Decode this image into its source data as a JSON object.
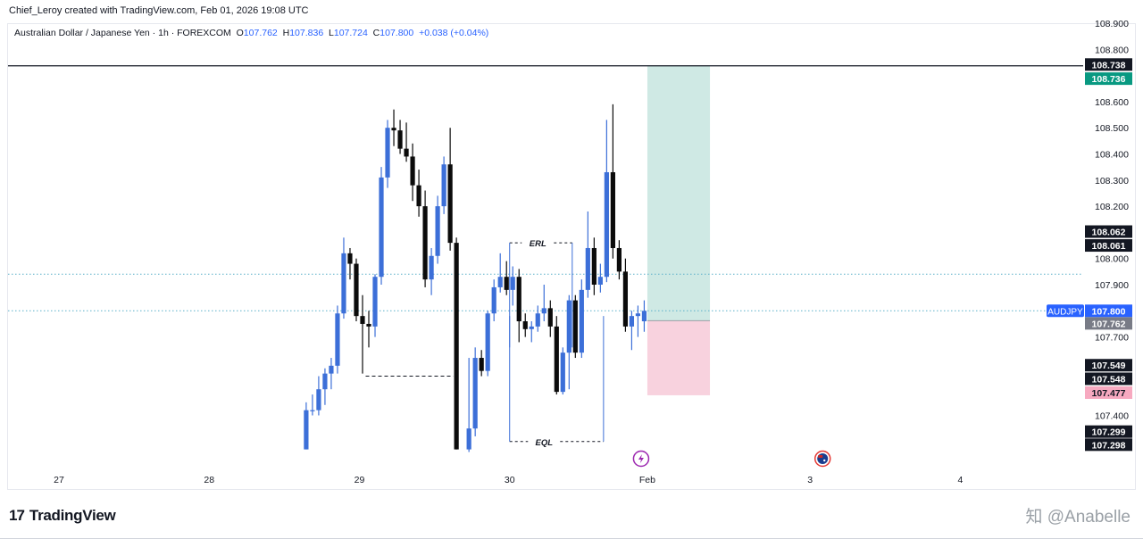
{
  "header": {
    "created_text": "Chief_Leroy created with TradingView.com, Feb 01, 2026 19:08 UTC"
  },
  "legend": {
    "symbol": "Australian Dollar / Japanese Yen · 1h · FOREXCOM",
    "open_key": "O",
    "open": "107.762",
    "high_key": "H",
    "high": "107.836",
    "low_key": "L",
    "low": "107.724",
    "close_key": "C",
    "close": "107.800",
    "change": "+0.038 (+0.04%)"
  },
  "colors": {
    "up": "#3c6fd8",
    "down": "#0b0b0b",
    "profit_zone": "#cfe9e4",
    "loss_zone": "#f8d2de",
    "price_badge": "#2962ff",
    "target_badge": "#089981",
    "stop_badge": "#f7a9c0",
    "entry_badge": "#787b86",
    "grid_dot": "#5ab0c9"
  },
  "chart_data": {
    "type": "candlestick",
    "symbol": "AUDJPY",
    "timeframe": "1h",
    "ylim": [
      107.28,
      108.92
    ],
    "y_ticks": [
      "108.900",
      "108.800",
      "108.700",
      "108.600",
      "108.500",
      "108.400",
      "108.300",
      "108.200",
      "108.100",
      "108.000",
      "107.900",
      "107.800",
      "107.700",
      "107.600",
      "107.500",
      "107.400",
      "107.300"
    ],
    "x_ticks": [
      {
        "label": "27",
        "t": 0
      },
      {
        "label": "28",
        "t": 24
      },
      {
        "label": "29",
        "t": 48
      },
      {
        "label": "30",
        "t": 72
      },
      {
        "label": "Feb",
        "t": 94
      },
      {
        "label": "3",
        "t": 120
      },
      {
        "label": "4",
        "t": 144
      }
    ],
    "candles": [
      {
        "t": 39.5,
        "o": 107.27,
        "h": 107.45,
        "l": 107.27,
        "c": 107.42
      },
      {
        "t": 40.5,
        "o": 107.42,
        "h": 107.48,
        "l": 107.4,
        "c": 107.42
      },
      {
        "t": 41.5,
        "o": 107.42,
        "h": 107.55,
        "l": 107.4,
        "c": 107.5
      },
      {
        "t": 42.5,
        "o": 107.5,
        "h": 107.58,
        "l": 107.44,
        "c": 107.56
      },
      {
        "t": 43.5,
        "o": 107.56,
        "h": 107.62,
        "l": 107.5,
        "c": 107.59
      },
      {
        "t": 44.5,
        "o": 107.59,
        "h": 107.82,
        "l": 107.56,
        "c": 107.79
      },
      {
        "t": 45.5,
        "o": 107.79,
        "h": 108.08,
        "l": 107.77,
        "c": 108.02
      },
      {
        "t": 46.5,
        "o": 108.02,
        "h": 108.04,
        "l": 107.92,
        "c": 107.98
      },
      {
        "t": 47.5,
        "o": 107.98,
        "h": 108.0,
        "l": 107.76,
        "c": 107.78
      },
      {
        "t": 48.5,
        "o": 107.78,
        "h": 107.86,
        "l": 107.56,
        "c": 107.75
      },
      {
        "t": 49.5,
        "o": 107.75,
        "h": 107.8,
        "l": 107.66,
        "c": 107.74
      },
      {
        "t": 50.5,
        "o": 107.74,
        "h": 107.94,
        "l": 107.7,
        "c": 107.93
      },
      {
        "t": 51.5,
        "o": 107.93,
        "h": 108.35,
        "l": 107.9,
        "c": 108.31
      },
      {
        "t": 52.5,
        "o": 108.31,
        "h": 108.53,
        "l": 108.27,
        "c": 108.5
      },
      {
        "t": 53.5,
        "o": 108.5,
        "h": 108.57,
        "l": 108.43,
        "c": 108.49
      },
      {
        "t": 54.5,
        "o": 108.49,
        "h": 108.53,
        "l": 108.4,
        "c": 108.42
      },
      {
        "t": 55.5,
        "o": 108.42,
        "h": 108.52,
        "l": 108.37,
        "c": 108.39
      },
      {
        "t": 56.5,
        "o": 108.39,
        "h": 108.44,
        "l": 108.22,
        "c": 108.28
      },
      {
        "t": 57.5,
        "o": 108.28,
        "h": 108.34,
        "l": 108.16,
        "c": 108.2
      },
      {
        "t": 58.5,
        "o": 108.2,
        "h": 108.26,
        "l": 107.89,
        "c": 107.92
      },
      {
        "t": 59.5,
        "o": 107.92,
        "h": 108.04,
        "l": 107.86,
        "c": 108.01
      },
      {
        "t": 60.5,
        "o": 108.01,
        "h": 108.24,
        "l": 107.98,
        "c": 108.2
      },
      {
        "t": 61.5,
        "o": 108.2,
        "h": 108.39,
        "l": 108.17,
        "c": 108.36
      },
      {
        "t": 62.5,
        "o": 108.36,
        "h": 108.5,
        "l": 108.03,
        "c": 108.06
      },
      {
        "t": 63.5,
        "o": 108.06,
        "h": 108.08,
        "l": 107.27,
        "c": 107.27
      },
      {
        "t": 65.5,
        "o": 107.27,
        "h": 107.62,
        "l": 107.26,
        "c": 107.35
      },
      {
        "t": 66.5,
        "o": 107.35,
        "h": 107.66,
        "l": 107.32,
        "c": 107.62
      },
      {
        "t": 67.5,
        "o": 107.62,
        "h": 107.65,
        "l": 107.55,
        "c": 107.57
      },
      {
        "t": 68.5,
        "o": 107.57,
        "h": 107.8,
        "l": 107.55,
        "c": 107.79
      },
      {
        "t": 69.5,
        "o": 107.79,
        "h": 107.92,
        "l": 107.76,
        "c": 107.89
      },
      {
        "t": 70.5,
        "o": 107.89,
        "h": 108.02,
        "l": 107.87,
        "c": 107.93
      },
      {
        "t": 71.5,
        "o": 107.93,
        "h": 107.99,
        "l": 107.86,
        "c": 107.88
      },
      {
        "t": 72.5,
        "o": 107.88,
        "h": 107.97,
        "l": 107.82,
        "c": 107.93
      },
      {
        "t": 73.5,
        "o": 107.93,
        "h": 107.96,
        "l": 107.68,
        "c": 107.76
      },
      {
        "t": 74.5,
        "o": 107.76,
        "h": 107.79,
        "l": 107.7,
        "c": 107.73
      },
      {
        "t": 75.5,
        "o": 107.73,
        "h": 107.76,
        "l": 107.68,
        "c": 107.74
      },
      {
        "t": 76.5,
        "o": 107.74,
        "h": 107.82,
        "l": 107.72,
        "c": 107.79
      },
      {
        "t": 77.5,
        "o": 107.79,
        "h": 107.9,
        "l": 107.76,
        "c": 107.81
      },
      {
        "t": 78.5,
        "o": 107.81,
        "h": 107.84,
        "l": 107.7,
        "c": 107.74
      },
      {
        "t": 79.5,
        "o": 107.74,
        "h": 107.78,
        "l": 107.48,
        "c": 107.49
      },
      {
        "t": 80.5,
        "o": 107.49,
        "h": 107.66,
        "l": 107.48,
        "c": 107.64
      },
      {
        "t": 81.5,
        "o": 107.64,
        "h": 107.86,
        "l": 107.5,
        "c": 107.84
      },
      {
        "t": 82.5,
        "o": 107.84,
        "h": 107.86,
        "l": 107.62,
        "c": 107.64
      },
      {
        "t": 83.5,
        "o": 107.64,
        "h": 107.92,
        "l": 107.62,
        "c": 107.88
      },
      {
        "t": 84.5,
        "o": 107.88,
        "h": 108.18,
        "l": 107.85,
        "c": 108.04
      },
      {
        "t": 85.5,
        "o": 108.04,
        "h": 108.08,
        "l": 107.86,
        "c": 107.9
      },
      {
        "t": 86.5,
        "o": 107.9,
        "h": 107.98,
        "l": 107.87,
        "c": 107.93
      },
      {
        "t": 87.5,
        "o": 107.93,
        "h": 108.53,
        "l": 107.91,
        "c": 108.33
      },
      {
        "t": 88.5,
        "o": 108.33,
        "h": 108.59,
        "l": 108.0,
        "c": 108.04
      },
      {
        "t": 89.5,
        "o": 108.04,
        "h": 108.07,
        "l": 107.92,
        "c": 107.95
      },
      {
        "t": 90.5,
        "o": 107.95,
        "h": 108.0,
        "l": 107.72,
        "c": 107.74
      },
      {
        "t": 91.5,
        "o": 107.74,
        "h": 107.8,
        "l": 107.65,
        "c": 107.78
      },
      {
        "t": 92.5,
        "o": 107.78,
        "h": 107.82,
        "l": 107.7,
        "c": 107.79
      },
      {
        "t": 93.5,
        "o": 107.76,
        "h": 107.84,
        "l": 107.72,
        "c": 107.8
      }
    ],
    "horizontal_lines": [
      {
        "price": 108.737,
        "style": "solid",
        "color": "#131722"
      },
      {
        "price": 107.94,
        "style": "dotted",
        "color": "#5ab0c9"
      },
      {
        "price": 107.8,
        "style": "dotted",
        "color": "#5ab0c9"
      }
    ],
    "annotations": [
      {
        "label": "ERL",
        "t_from": 72,
        "t_to": 82,
        "price": 108.06,
        "bracket_up": 107.66,
        "label_t": 76.5
      },
      {
        "label": "EQL",
        "t_from": 72,
        "t_to": 87,
        "price": 107.3,
        "bracket_up": 107.78,
        "label_t": 77.5
      }
    ],
    "liquidity_line": {
      "t_from": 49,
      "t_to": 63,
      "price": 107.55
    },
    "position": {
      "type": "long",
      "t_from": 94,
      "t_to": 104,
      "entry": 107.762,
      "target": 108.738,
      "stop": 107.477
    },
    "price_badges": [
      {
        "text": "108.738",
        "price": 108.742,
        "bg": "#131722",
        "fg": "#ffffff"
      },
      {
        "text": "108.736",
        "price": 108.688,
        "bg": "#089981",
        "fg": "#ffffff"
      },
      {
        "text": "108.062",
        "price": 108.103,
        "bg": "#131722",
        "fg": "#ffffff"
      },
      {
        "text": "108.061",
        "price": 108.05,
        "bg": "#131722",
        "fg": "#ffffff"
      },
      {
        "text": "107.800",
        "price": 107.8,
        "bg": "#2962ff",
        "fg": "#ffffff"
      },
      {
        "text": "107.762",
        "price": 107.752,
        "bg": "#787b86",
        "fg": "#ffffff"
      },
      {
        "text": "107.549",
        "price": 107.592,
        "bg": "#131722",
        "fg": "#ffffff"
      },
      {
        "text": "107.548",
        "price": 107.54,
        "bg": "#131722",
        "fg": "#ffffff"
      },
      {
        "text": "107.477",
        "price": 107.487,
        "bg": "#f7a9c0",
        "fg": "#131722"
      },
      {
        "text": "107.299",
        "price": 107.338,
        "bg": "#131722",
        "fg": "#ffffff"
      },
      {
        "text": "107.298",
        "price": 107.288,
        "bg": "#131722",
        "fg": "#ffffff"
      }
    ],
    "symbol_badge": {
      "text": "AUDJPY",
      "price": 107.8
    },
    "events": [
      {
        "t": 94,
        "icon": "lightning-icon"
      },
      {
        "t": 122,
        "icon": "australia-flag-icon"
      }
    ]
  },
  "footer": {
    "brand": "TradingView",
    "brand_mark": "17",
    "watermark": "知 @Anabelle"
  }
}
